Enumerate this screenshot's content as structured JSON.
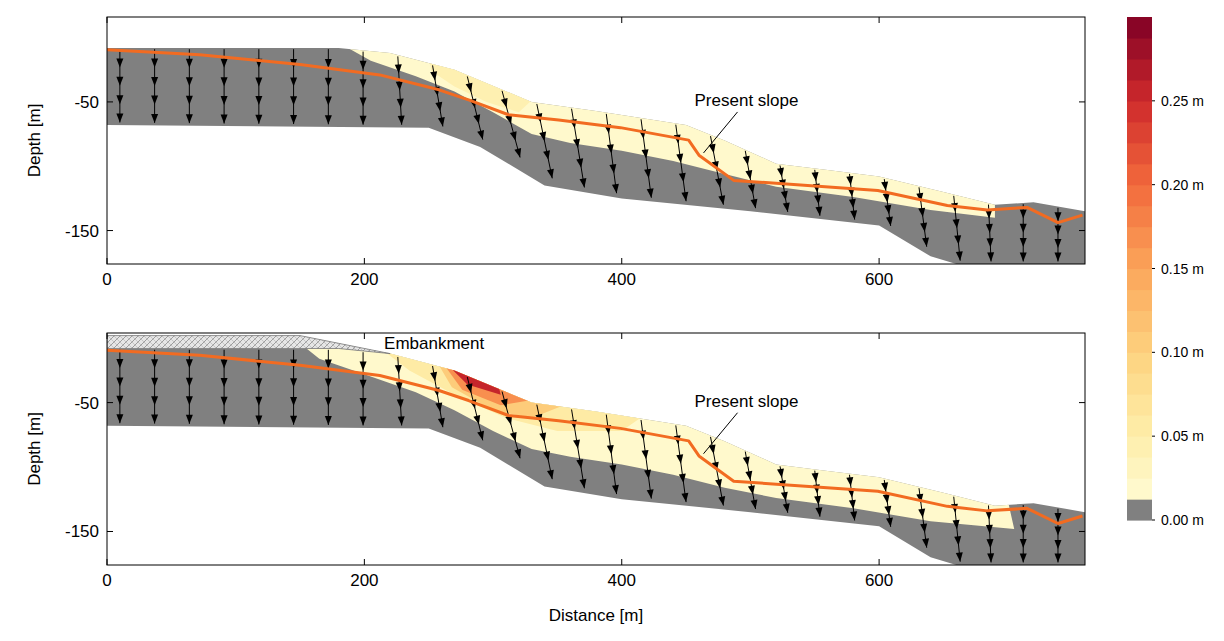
{
  "chart_data": {
    "type": "cross-section",
    "xlabel": "Distance [m]",
    "xlim": [
      0,
      760
    ],
    "xticks": [
      0,
      200,
      400,
      600
    ],
    "yticks": [
      -50,
      -150
    ],
    "colorbar": {
      "range": [
        0,
        0.3
      ],
      "ticks": [
        {
          "value": 0,
          "label": "0.00 m"
        },
        {
          "value": 0.05,
          "label": "0.05 m"
        },
        {
          "value": 0.1,
          "label": "0.10 m"
        },
        {
          "value": 0.15,
          "label": "0.15 m"
        },
        {
          "value": 0.2,
          "label": "0.20 m"
        },
        {
          "value": 0.25,
          "label": "0.25 m"
        }
      ]
    },
    "domain": {
      "color": "#808080",
      "x": [
        0,
        180,
        220,
        270,
        330,
        380,
        450,
        480,
        520,
        560,
        600,
        650,
        690,
        720,
        760,
        760,
        660,
        640,
        600,
        500,
        400,
        340,
        290,
        250,
        0
      ],
      "y": [
        -8,
        -8,
        -12,
        -25,
        -50,
        -57,
        -68,
        -80,
        -98,
        -103,
        -108,
        -120,
        -130,
        -128,
        -135,
        -176,
        -176,
        -170,
        -146,
        -135,
        -125,
        -115,
        -85,
        -70,
        -68
      ]
    },
    "present_slope": {
      "color": "#f26b21",
      "x": [
        0,
        72,
        150,
        212,
        258,
        281,
        312,
        351,
        399,
        452,
        460,
        487,
        599,
        653,
        684,
        715,
        739,
        758
      ],
      "y": [
        -9.4,
        -13.3,
        -21,
        -29,
        -40.6,
        -48.4,
        -60,
        -64,
        -70,
        -79.7,
        -91.4,
        -111,
        -118.8,
        -130.5,
        -134,
        -132,
        -143.8,
        -138
      ]
    },
    "arrows": [
      {
        "x": [
          10,
          10
        ],
        "y": [
          -9,
          -66
        ]
      },
      {
        "x": [
          37,
          37
        ],
        "y": [
          -9,
          -66.3
        ]
      },
      {
        "x": [
          64,
          64
        ],
        "y": [
          -9,
          -66.5
        ]
      },
      {
        "x": [
          91,
          91
        ],
        "y": [
          -9,
          -66.8
        ]
      },
      {
        "x": [
          118,
          118
        ],
        "y": [
          -9,
          -67
        ]
      },
      {
        "x": [
          145,
          145
        ],
        "y": [
          -9,
          -67.2
        ]
      },
      {
        "x": [
          172,
          172
        ],
        "y": [
          -9,
          -67.4
        ]
      },
      {
        "x": [
          199,
          199
        ],
        "y": [
          -10.9,
          -67.7
        ]
      },
      {
        "x": [
          226,
          229
        ],
        "y": [
          -14.6,
          -67.8
        ]
      },
      {
        "x": [
          253,
          261
        ],
        "y": [
          -21.6,
          -69.1
        ]
      },
      {
        "x": [
          280,
          292
        ],
        "y": [
          -30.2,
          -79.3
        ]
      },
      {
        "x": [
          307,
          321
        ],
        "y": [
          -41.4,
          -93.2
        ]
      },
      {
        "x": [
          334,
          346
        ],
        "y": [
          -51.6,
          -109.4
        ]
      },
      {
        "x": [
          361,
          371
        ],
        "y": [
          -55.3,
          -116.5
        ]
      },
      {
        "x": [
          388,
          396
        ],
        "y": [
          -59.3,
          -121
        ]
      },
      {
        "x": [
          415,
          423
        ],
        "y": [
          -63.5,
          -124.5
        ]
      },
      {
        "x": [
          442,
          450
        ],
        "y": [
          -67.7,
          -127.2
        ]
      },
      {
        "x": [
          469,
          479
        ],
        "y": [
          -76.6,
          -129.9
        ]
      },
      {
        "x": [
          496,
          504
        ],
        "y": [
          -88,
          -132.6
        ]
      },
      {
        "x": [
          523,
          529
        ],
        "y": [
          -99.4,
          -135.5
        ]
      },
      {
        "x": [
          550,
          554
        ],
        "y": [
          -102.8,
          -138.5
        ]
      },
      {
        "x": [
          577,
          581
        ],
        "y": [
          -106,
          -141.5
        ]
      },
      {
        "x": [
          604,
          609
        ],
        "y": [
          -110,
          -146.4
        ]
      },
      {
        "x": [
          631,
          637
        ],
        "y": [
          -116.4,
          -162.6
        ]
      },
      {
        "x": [
          658,
          663
        ],
        "y": [
          -123,
          -173.4
        ]
      },
      {
        "x": [
          685,
          687
        ],
        "y": [
          -129.8,
          -174
        ]
      },
      {
        "x": [
          712,
          712
        ],
        "y": [
          -129.5,
          -174
        ]
      },
      {
        "x": [
          739,
          739
        ],
        "y": [
          -132.3,
          -174
        ]
      }
    ],
    "panels": [
      {
        "ylabel": "Depth [m]",
        "ylim": [
          -176,
          16
        ],
        "annotations": [
          {
            "text": "Present slope",
            "x": 462,
            "y": -92
          }
        ],
        "zones": [
          {
            "value": 0.02,
            "x": [
              180,
              220,
              270,
              330,
              380,
              450,
              480,
              520,
              560,
              600,
              650,
              690,
              690,
              640,
              580,
              520,
              480,
              440,
              400,
              360,
              330,
              300,
              270,
              240,
              205
            ],
            "y": [
              -4,
              -8,
              -21,
              -46,
              -53,
              -64,
              -76,
              -94,
              -99,
              -104,
              -116,
              -126,
              -140,
              -134,
              -124,
              -116,
              -106,
              -96,
              -88,
              -82,
              -75,
              -58,
              -42,
              -30,
              -18
            ]
          },
          {
            "value": 0.04,
            "x": [
              250,
              275,
              305,
              332,
              320,
              295,
              270,
              252
            ],
            "y": [
              -14,
              -22,
              -34,
              -47,
              -58,
              -50,
              -38,
              -26
            ]
          }
        ]
      },
      {
        "ylabel": "Depth [m]",
        "ylim": [
          -176,
          4
        ],
        "embankment": {
          "label": "Embankment",
          "x": [
            0,
            150,
            220,
            180,
            0
          ],
          "y": [
            2,
            2,
            -12,
            -8,
            -8
          ]
        },
        "annotations": [
          {
            "text": "Present slope",
            "x": 462,
            "y": -92
          }
        ],
        "zones": [
          {
            "value": 0.02,
            "x": [
              150,
              180,
              220,
              270,
              330,
              380,
              450,
              480,
              520,
              560,
              600,
              650,
              700,
              705,
              640,
              580,
              520,
              480,
              440,
              400,
              360,
              330,
              300,
              270,
              240,
              200,
              165
            ],
            "y": [
              -4,
              -4,
              -8,
              -21,
              -46,
              -53,
              -64,
              -76,
              -94,
              -99,
              -104,
              -116,
              -126,
              -148,
              -142,
              -132,
              -124,
              -116,
              -106,
              -98,
              -92,
              -86,
              -72,
              -56,
              -42,
              -28,
              -16
            ]
          },
          {
            "value": 0.05,
            "x": [
              210,
              270,
              330,
              380,
              420,
              400,
              350,
              310,
              270,
              235
            ],
            "y": [
              -6,
              -21,
              -46,
              -53,
              -58,
              -72,
              -72,
              -62,
              -44,
              -25
            ]
          },
          {
            "value": 0.1,
            "x": [
              255,
              275,
              335,
              355,
              330,
              300,
              268
            ],
            "y": [
              -16,
              -20,
              -46,
              -52,
              -62,
              -56,
              -38
            ]
          },
          {
            "value": 0.17,
            "x": [
              260,
              306,
              330,
              306,
              276
            ],
            "y": [
              -18,
              -36,
              -48,
              -52,
              -40
            ]
          },
          {
            "value": 0.25,
            "x": [
              264,
              304,
              306,
              280
            ],
            "y": [
              -20,
              -36,
              -44,
              -36
            ]
          }
        ]
      }
    ]
  }
}
